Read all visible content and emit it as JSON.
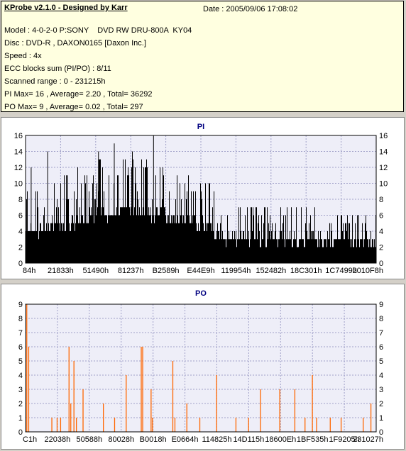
{
  "header": {
    "title": "KProbe v2.1.0 - Designed by Karr",
    "date": "Date : 2005/09/06 17:08:02",
    "lines": [
      "Model : 4-0-2-0 P:SONY    DVD RW DRU-800A  KY04",
      "Disc : DVD-R , DAXON0165 [Daxon Inc.]",
      "Speed : 4x",
      "ECC blocks sum (PI/PO) : 8/11",
      "Scanned range : 0 - 231215h",
      "PI Max= 16 , Average= 2.20 , Total= 36292",
      "PO Max= 9 , Average= 0.02 , Total= 297"
    ]
  },
  "chart_data": [
    {
      "type": "bar",
      "title": "PI",
      "color": "#000000",
      "ylim": [
        0,
        16
      ],
      "yticks": [
        0,
        2,
        4,
        6,
        8,
        10,
        12,
        14,
        16
      ],
      "xlim": [
        0,
        231215
      ],
      "xtick_labels": [
        "84h",
        "21833h",
        "51490h",
        "81237h",
        "B2589h",
        "E44E9h",
        "119954h",
        "152482h",
        "18C301h",
        "1C7499h",
        "2010F8h"
      ],
      "max": 16,
      "average": 2.2,
      "total": 36292,
      "baseline_profile": [
        {
          "x_frac": 0.0,
          "level": 4.0,
          "spike": 9.0
        },
        {
          "x_frac": 0.15,
          "level": 5.2,
          "spike": 12.0
        },
        {
          "x_frac": 0.28,
          "level": 6.5,
          "spike": 14.0
        },
        {
          "x_frac": 0.4,
          "level": 6.0,
          "spike": 12.0
        },
        {
          "x_frac": 0.52,
          "level": 4.5,
          "spike": 10.0
        },
        {
          "x_frac": 0.57,
          "level": 3.0,
          "spike": 7.5
        },
        {
          "x_frac": 0.8,
          "level": 3.0,
          "spike": 7.0
        },
        {
          "x_frac": 1.0,
          "level": 2.5,
          "spike": 6.0
        }
      ],
      "peaks": [
        {
          "x_frac": 0.365,
          "value": 16
        },
        {
          "x_frac": 0.253,
          "value": 15
        },
        {
          "x_frac": 0.208,
          "value": 14
        },
        {
          "x_frac": 0.063,
          "value": 14
        },
        {
          "x_frac": 0.016,
          "value": 12
        }
      ]
    },
    {
      "type": "bar",
      "title": "PO",
      "color": "#ff6600",
      "ylim": [
        0,
        9
      ],
      "yticks": [
        0,
        1,
        2,
        3,
        4,
        5,
        6,
        7,
        8,
        9
      ],
      "xlim": [
        0,
        231215
      ],
      "xtick_labels": [
        "C1h",
        "22038h",
        "50588h",
        "80028h",
        "B0018h",
        "E0664h",
        "114825h",
        "14D115h",
        "18600Eh",
        "1BF535h",
        "1F9205h",
        "231027h"
      ],
      "max": 9,
      "average": 0.02,
      "total": 297,
      "spikes": [
        {
          "x_frac": 0.0035,
          "value": 9
        },
        {
          "x_frac": 0.009,
          "value": 6
        },
        {
          "x_frac": 0.075,
          "value": 1
        },
        {
          "x_frac": 0.09,
          "value": 1
        },
        {
          "x_frac": 0.1,
          "value": 1
        },
        {
          "x_frac": 0.124,
          "value": 6
        },
        {
          "x_frac": 0.129,
          "value": 2
        },
        {
          "x_frac": 0.138,
          "value": 5
        },
        {
          "x_frac": 0.145,
          "value": 1
        },
        {
          "x_frac": 0.164,
          "value": 3
        },
        {
          "x_frac": 0.222,
          "value": 2
        },
        {
          "x_frac": 0.254,
          "value": 1
        },
        {
          "x_frac": 0.287,
          "value": 4
        },
        {
          "x_frac": 0.33,
          "value": 6
        },
        {
          "x_frac": 0.334,
          "value": 6
        },
        {
          "x_frac": 0.358,
          "value": 3
        },
        {
          "x_frac": 0.362,
          "value": 1
        },
        {
          "x_frac": 0.42,
          "value": 5
        },
        {
          "x_frac": 0.426,
          "value": 1
        },
        {
          "x_frac": 0.46,
          "value": 2
        },
        {
          "x_frac": 0.497,
          "value": 1
        },
        {
          "x_frac": 0.545,
          "value": 4
        },
        {
          "x_frac": 0.6,
          "value": 1
        },
        {
          "x_frac": 0.636,
          "value": 1
        },
        {
          "x_frac": 0.67,
          "value": 3
        },
        {
          "x_frac": 0.725,
          "value": 3
        },
        {
          "x_frac": 0.768,
          "value": 3
        },
        {
          "x_frac": 0.797,
          "value": 1
        },
        {
          "x_frac": 0.818,
          "value": 4
        },
        {
          "x_frac": 0.83,
          "value": 1
        },
        {
          "x_frac": 0.869,
          "value": 1
        },
        {
          "x_frac": 0.9,
          "value": 1
        },
        {
          "x_frac": 0.963,
          "value": 1
        },
        {
          "x_frac": 0.985,
          "value": 2
        }
      ]
    }
  ]
}
